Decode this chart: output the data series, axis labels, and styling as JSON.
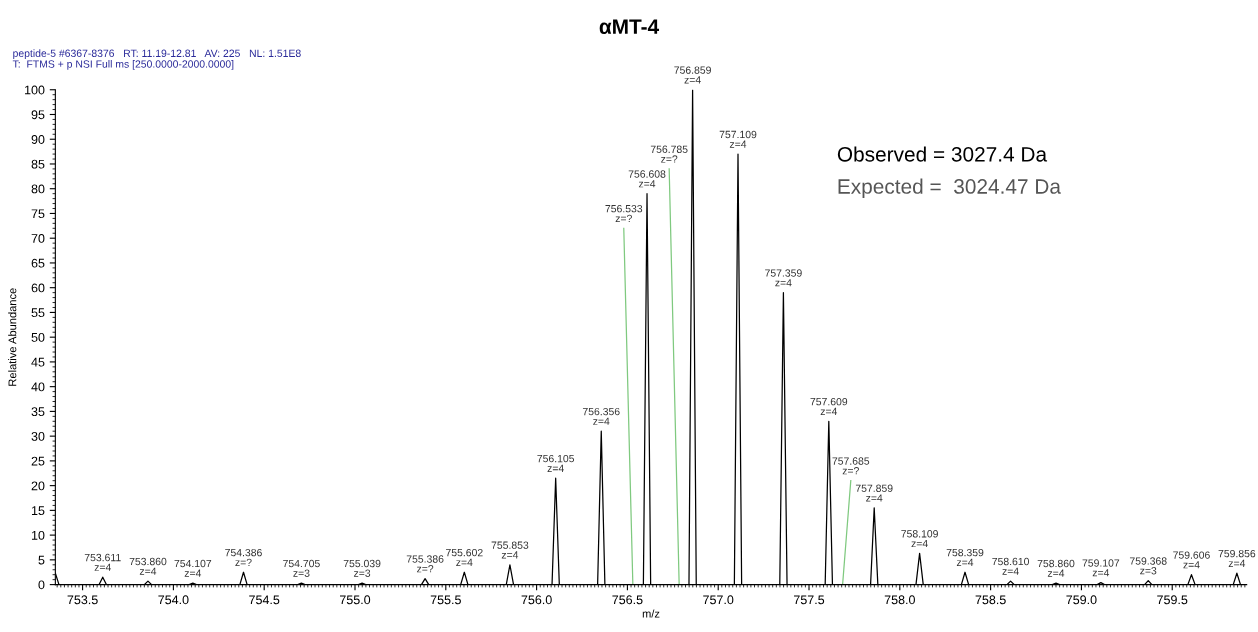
{
  "chart_data": {
    "type": "line",
    "title": "αMT-4",
    "xlabel": "m/z",
    "ylabel": "Relative Abundance",
    "xlim": [
      753.35,
      759.91
    ],
    "ylim": [
      0,
      100
    ],
    "xticks": [
      753.5,
      {
        "value": 754.0,
        "label": "754.0"
      },
      754.5,
      {
        "value": 755.0,
        "label": "755.0"
      },
      755.5,
      {
        "value": 756.0,
        "label": "756.0"
      },
      756.5,
      {
        "value": 757.0,
        "label": "757.0"
      },
      757.5,
      {
        "value": 758.0,
        "label": "758.0"
      },
      758.5,
      {
        "value": 759.0,
        "label": "759.0"
      },
      759.5
    ],
    "yticks": [
      0,
      5,
      10,
      15,
      20,
      25,
      30,
      35,
      40,
      45,
      50,
      55,
      60,
      65,
      70,
      75,
      80,
      85,
      90,
      95,
      100
    ],
    "grid": false,
    "marker": "none",
    "line_style": "solid",
    "series": [
      {
        "color": "#000000",
        "x": [
          753.35,
          753.37,
          753.591,
          753.611,
          753.631,
          753.84,
          753.86,
          753.88,
          754.087,
          754.107,
          754.127,
          754.366,
          754.386,
          754.406,
          754.685,
          754.705,
          754.725,
          755.019,
          755.039,
          755.059,
          755.366,
          755.386,
          755.406,
          755.582,
          755.602,
          755.622,
          755.833,
          755.853,
          755.873,
          756.085,
          756.105,
          756.125,
          756.336,
          756.356,
          756.376,
          756.588,
          756.608,
          756.628,
          756.839,
          756.859,
          756.879,
          757.089,
          757.109,
          757.129,
          757.339,
          757.359,
          757.379,
          757.589,
          757.609,
          757.629,
          757.839,
          757.859,
          757.879,
          758.089,
          758.109,
          758.129,
          758.339,
          758.359,
          758.379,
          758.59,
          758.61,
          758.63,
          758.84,
          758.86,
          758.88,
          759.087,
          759.107,
          759.127,
          759.348,
          759.368,
          759.388,
          759.586,
          759.606,
          759.626,
          759.836,
          759.856,
          759.876,
          759.9
        ],
        "values": [
          2.3,
          0,
          0,
          1.5,
          0,
          0,
          0.7,
          0,
          0,
          0.3,
          0,
          0,
          2.5,
          0,
          0,
          0.3,
          0,
          0,
          0.3,
          0,
          0,
          1.2,
          0,
          0,
          2.5,
          0,
          0,
          4.0,
          0,
          0,
          21.5,
          0,
          0,
          31,
          0,
          0,
          79,
          0,
          0,
          100,
          0,
          0,
          87,
          0,
          0,
          59,
          0,
          0,
          33,
          0,
          0,
          15.5,
          0,
          0,
          6.3,
          0,
          0,
          2.5,
          0,
          0,
          0.7,
          0,
          0,
          0.3,
          0,
          0,
          0.4,
          0,
          0,
          0.8,
          0,
          0,
          2.0,
          0,
          0,
          2.3,
          0,
          0
        ]
      },
      {
        "color": "#7fc97f",
        "x": [
          756.48,
          756.53,
          756.6,
          756.73,
          756.785,
          757.7,
          757.73,
          757.685
        ],
        "values": [
          72,
          0,
          null,
          84,
          0,
          null,
          21,
          0
        ]
      }
    ],
    "annotations": [
      "peptide-5 #6367-8376   RT: 11.19-12.81   AV: 225   NL: 1.51E8",
      "T:  FTMS + p NSI Full ms [250.0000-2000.0000]",
      "Observed = 3027.4 Da",
      "Expected =  3024.47 Da",
      {
        "text": "753.611\nz=4",
        "x": 753.611,
        "y": 1.5
      },
      {
        "text": "753.860\nz=4",
        "x": 753.86,
        "y": 0.7
      },
      {
        "text": "754.107\nz=4",
        "x": 754.107,
        "y": 0.3
      },
      {
        "text": "754.386\nz=?",
        "x": 754.386,
        "y": 2.5
      },
      {
        "text": "754.705\nz=3",
        "x": 754.705,
        "y": 0.3
      },
      {
        "text": "755.039\nz=3",
        "x": 755.039,
        "y": 0.3
      },
      {
        "text": "755.386\nz=?",
        "x": 755.386,
        "y": 1.2
      },
      {
        "text": "755.602\nz=4",
        "x": 755.602,
        "y": 2.5
      },
      {
        "text": "755.853\nz=4",
        "x": 755.853,
        "y": 4.0
      },
      {
        "text": "756.105\nz=4",
        "x": 756.105,
        "y": 21.5
      },
      {
        "text": "756.356\nz=4",
        "x": 756.356,
        "y": 31
      },
      {
        "text": "756.533\nz=?",
        "x": 756.48,
        "y": 72
      },
      {
        "text": "756.608\nz=4",
        "x": 756.608,
        "y": 79
      },
      {
        "text": "756.785\nz=?",
        "x": 756.73,
        "y": 84
      },
      {
        "text": "756.859\nz=4",
        "x": 756.859,
        "y": 100
      },
      {
        "text": "757.109\nz=4",
        "x": 757.109,
        "y": 87
      },
      {
        "text": "757.359\nz=4",
        "x": 757.359,
        "y": 59
      },
      {
        "text": "757.609\nz=4",
        "x": 757.609,
        "y": 33
      },
      {
        "text": "757.685\nz=?",
        "x": 757.73,
        "y": 21
      },
      {
        "text": "757.859\nz=4",
        "x": 757.859,
        "y": 15.5
      },
      {
        "text": "758.109\nz=4",
        "x": 758.109,
        "y": 6.3
      },
      {
        "text": "758.359\nz=4",
        "x": 758.359,
        "y": 2.5
      },
      {
        "text": "758.610\nz=4",
        "x": 758.61,
        "y": 0.7
      },
      {
        "text": "758.860\nz=4",
        "x": 758.86,
        "y": 0.3
      },
      {
        "text": "759.107\nz=4",
        "x": 759.107,
        "y": 0.4
      },
      {
        "text": "759.368\nz=3",
        "x": 759.368,
        "y": 0.8
      },
      {
        "text": "759.606\nz=4",
        "x": 759.606,
        "y": 2.0
      },
      {
        "text": "759.856\nz=4",
        "x": 759.856,
        "y": 2.3
      }
    ]
  }
}
